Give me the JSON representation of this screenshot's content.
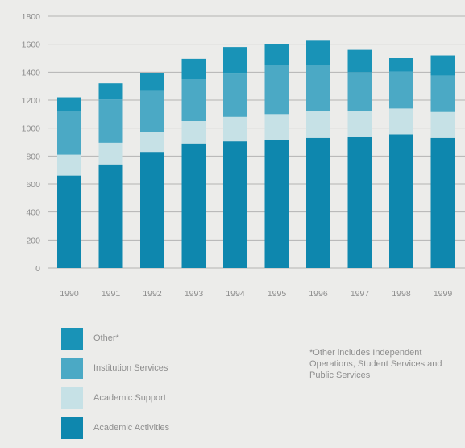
{
  "chart_data": {
    "type": "bar",
    "stacked": true,
    "categories": [
      "1990",
      "1991",
      "1992",
      "1993",
      "1994",
      "1995",
      "1996",
      "1997",
      "1998",
      "1999"
    ],
    "series": [
      {
        "name": "Academic Activities",
        "color": "#0e87ae",
        "values": [
          660,
          740,
          830,
          890,
          905,
          915,
          930,
          935,
          955,
          930
        ]
      },
      {
        "name": "Academic Support",
        "color": "#c6e1e6",
        "values": [
          150,
          155,
          145,
          160,
          175,
          185,
          195,
          185,
          185,
          185
        ]
      },
      {
        "name": "Institution Services",
        "color": "#4ba9c5",
        "values": [
          310,
          310,
          290,
          300,
          310,
          350,
          325,
          280,
          265,
          260
        ]
      },
      {
        "name": "Other*",
        "color": "#1993b7",
        "values": [
          100,
          115,
          130,
          145,
          190,
          150,
          175,
          160,
          95,
          145
        ]
      }
    ],
    "ylim": [
      0,
      1800
    ],
    "yticks": [
      0,
      200,
      400,
      600,
      800,
      1000,
      1200,
      1400,
      1600,
      1800
    ],
    "grid": true,
    "legend_position": "bottom-left",
    "legend_order": [
      "Other*",
      "Institution Services",
      "Academic Support",
      "Academic Activities"
    ],
    "footnote": "*Other includes Independent Operations, Student Services and Public Services"
  }
}
